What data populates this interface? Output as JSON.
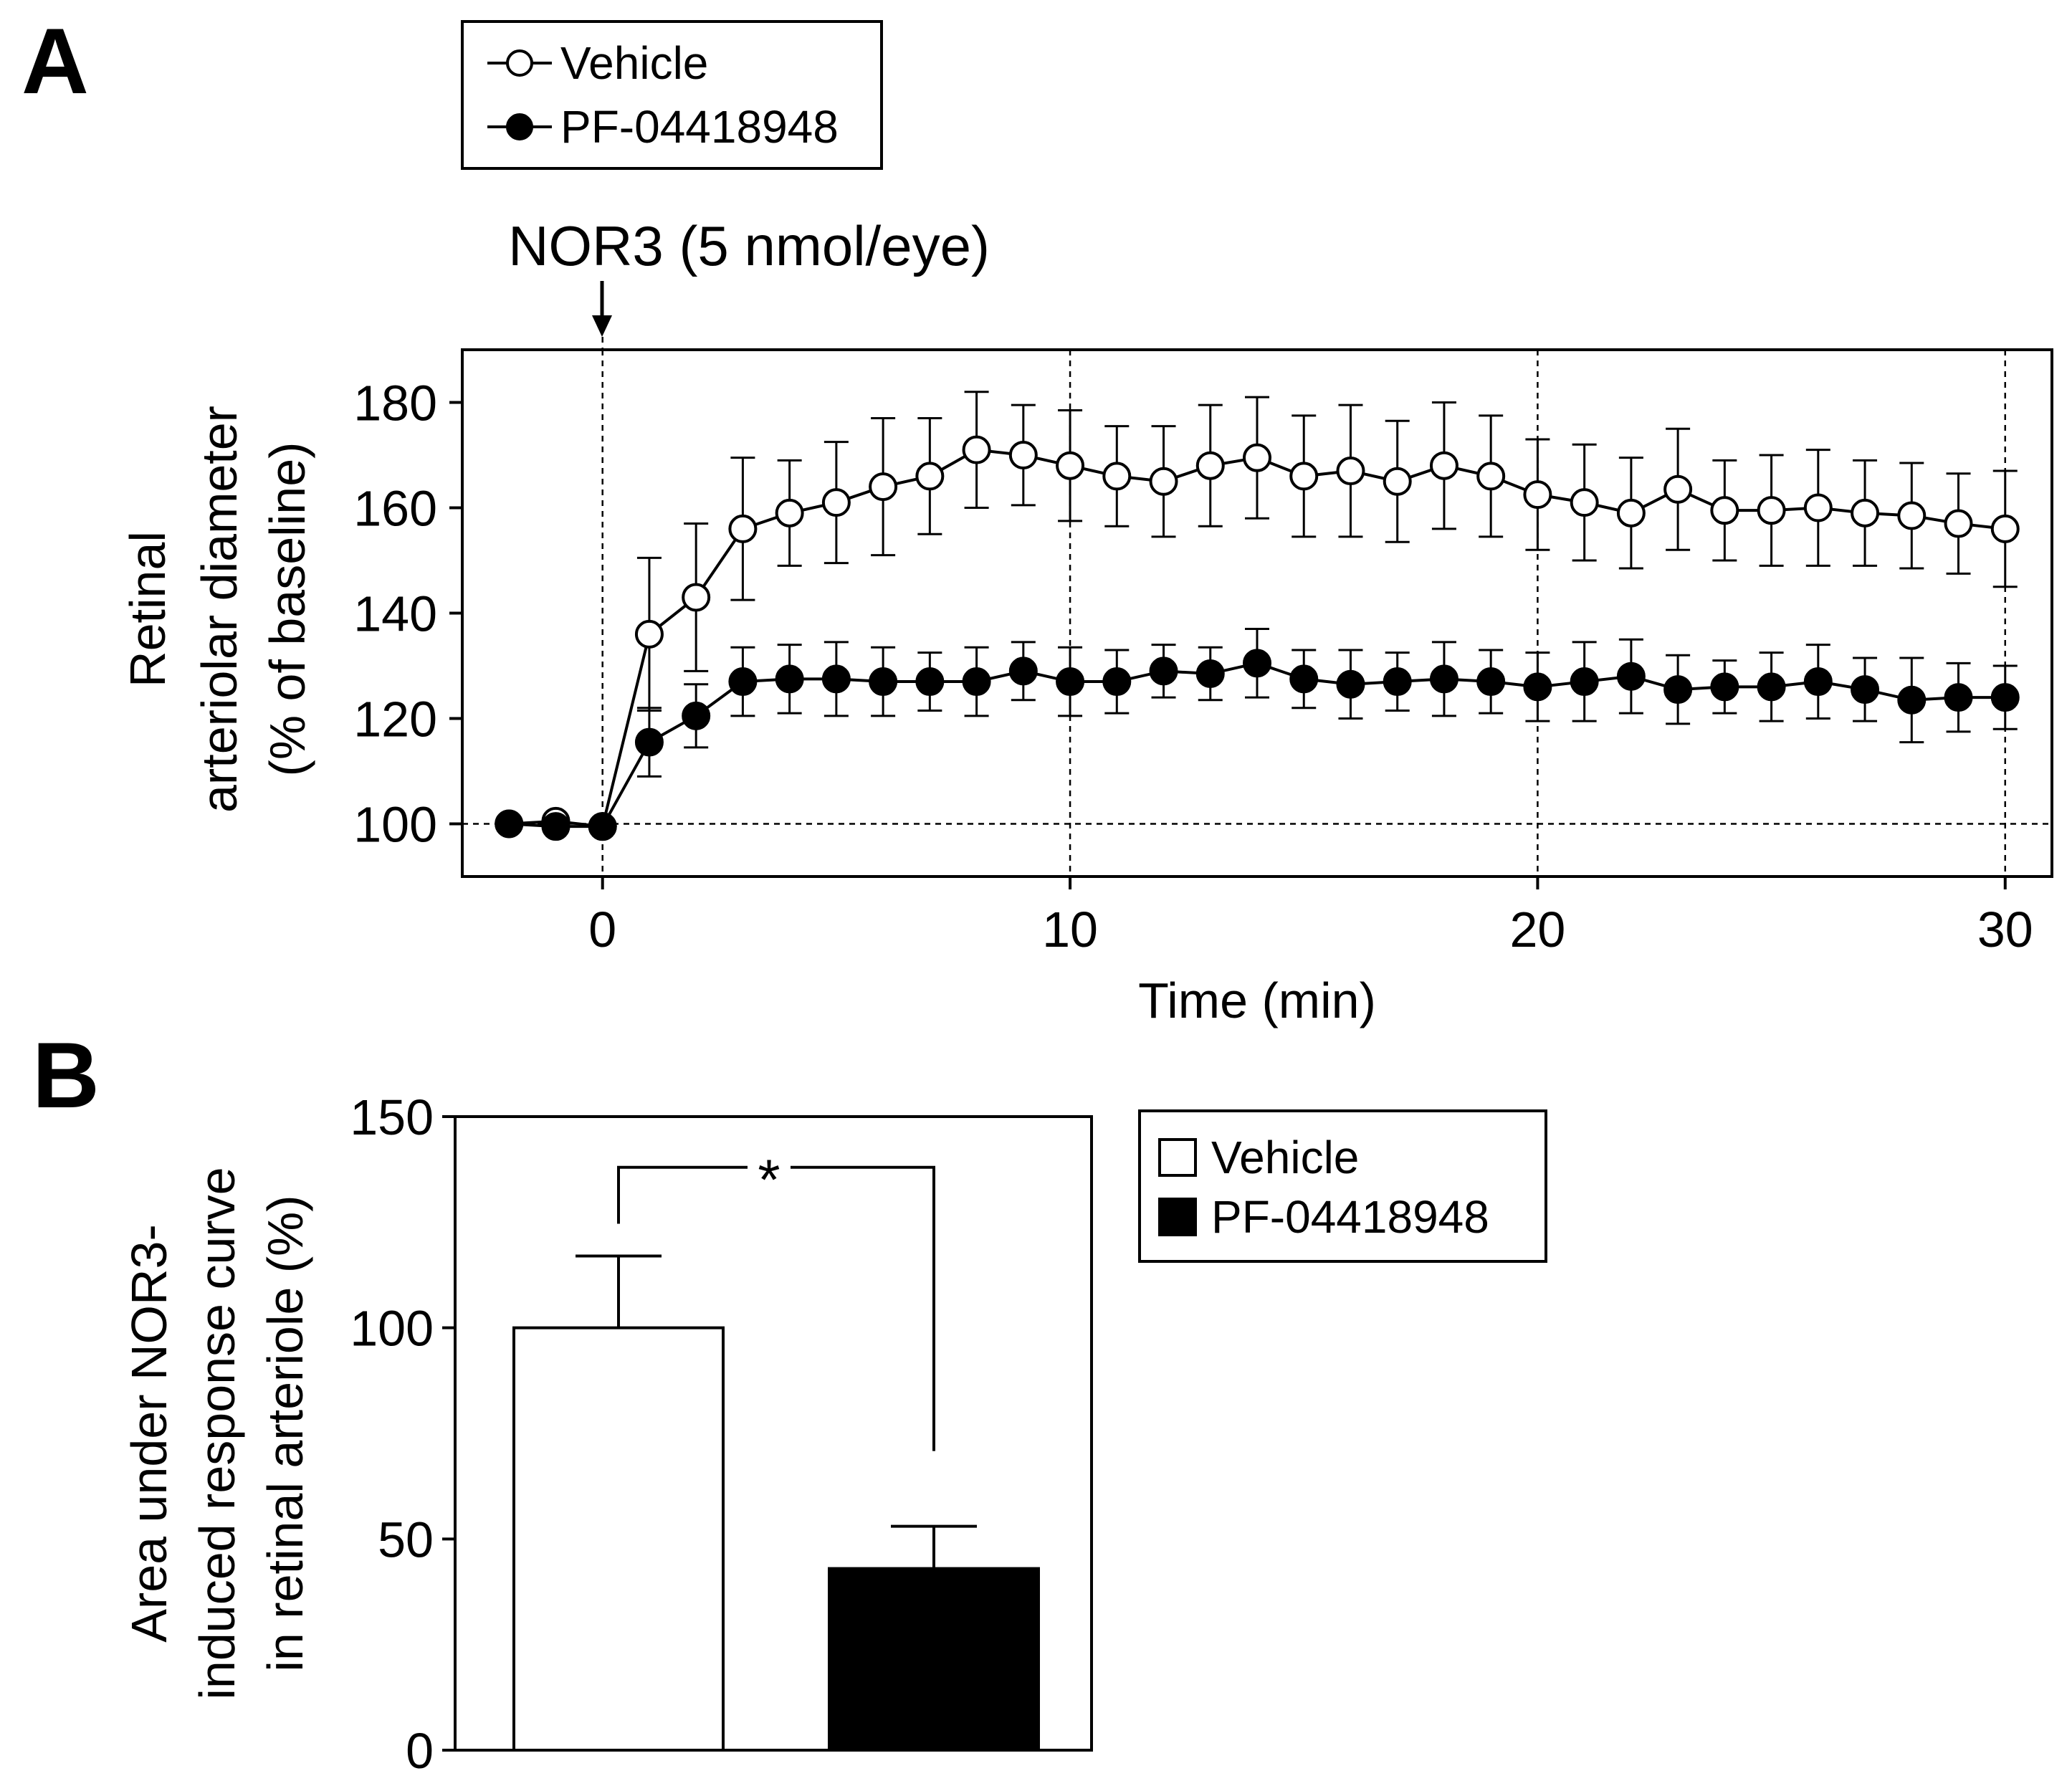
{
  "chart_data": [
    {
      "panel": "A",
      "type": "line",
      "xlabel": "Time (min)",
      "ylabel": [
        "Retinal",
        "arteriolar diameter",
        "(% of baseline)"
      ],
      "xlim": [
        -3,
        31
      ],
      "ylim": [
        90,
        190
      ],
      "xticks": [
        0,
        10,
        20,
        30
      ],
      "yticks": [
        100,
        120,
        140,
        160,
        180
      ],
      "vgrid": [
        0,
        10,
        20,
        30
      ],
      "hgrid": [
        100
      ],
      "annotation": {
        "text": "NOR3 (5 nmol/eye)",
        "x": 0
      },
      "legend": {
        "position": "top-left",
        "entries": [
          "Vehicle",
          "PF-04418948"
        ]
      },
      "series": [
        {
          "name": "Vehicle",
          "marker": "open-circle",
          "x": [
            -2,
            -1,
            0,
            1,
            2,
            3,
            4,
            5,
            6,
            7,
            8,
            9,
            10,
            11,
            12,
            13,
            14,
            15,
            16,
            17,
            18,
            19,
            20,
            21,
            22,
            23,
            24,
            25,
            26,
            27,
            28,
            29,
            30
          ],
          "y": [
            100,
            100.5,
            99.5,
            136,
            143,
            156,
            159,
            161,
            164,
            166,
            171,
            170,
            168,
            166,
            165,
            168,
            169.5,
            166,
            167,
            165,
            168,
            166,
            162.5,
            161,
            159,
            163.5,
            159.5,
            159.5,
            160,
            159,
            158.5,
            157,
            156
          ],
          "err": [
            0,
            0,
            0,
            14.5,
            14,
            13.5,
            10,
            11.5,
            13,
            11,
            11,
            9.5,
            10.5,
            9.5,
            10.5,
            11.5,
            11.5,
            11.5,
            12.5,
            11.5,
            12,
            11.5,
            10.5,
            11,
            10.5,
            11.5,
            9.5,
            10.5,
            11,
            10,
            10,
            9.5,
            11
          ]
        },
        {
          "name": "PF-04418948",
          "marker": "filled-circle",
          "x": [
            -2,
            -1,
            0,
            1,
            2,
            3,
            4,
            5,
            6,
            7,
            8,
            9,
            10,
            11,
            12,
            13,
            14,
            15,
            16,
            17,
            18,
            19,
            20,
            21,
            22,
            23,
            24,
            25,
            26,
            27,
            28,
            29,
            30
          ],
          "y": [
            100,
            99.5,
            99.5,
            115.5,
            120.5,
            127,
            127.5,
            127.5,
            127,
            127,
            127,
            129,
            127,
            127,
            129,
            128.5,
            130.5,
            127.5,
            126.5,
            127,
            127.5,
            127,
            126,
            127,
            128,
            125.5,
            126,
            126,
            127,
            125.5,
            123.5,
            124,
            124
          ],
          "err": [
            0,
            0,
            0,
            6.5,
            6,
            6.5,
            6.5,
            7,
            6.5,
            5.5,
            6.5,
            5.5,
            6.5,
            6,
            5,
            5,
            6.5,
            5.5,
            6.5,
            5.5,
            7,
            6,
            6.5,
            7.5,
            7,
            6.5,
            5,
            6.5,
            7,
            6,
            8,
            6.5,
            6
          ]
        }
      ]
    },
    {
      "panel": "B",
      "type": "bar",
      "categories": [
        "Vehicle",
        "PF-04418948"
      ],
      "values": [
        100,
        43
      ],
      "errors": [
        17,
        10
      ],
      "ylabel": [
        "Area under NOR3-",
        "induced response curve",
        "in retinal arteriole (%)"
      ],
      "ylim": [
        0,
        150
      ],
      "yticks": [
        0,
        50,
        100,
        150
      ],
      "significance": "*",
      "legend": {
        "position": "right",
        "entries": [
          "Vehicle",
          "PF-04418948"
        ]
      }
    }
  ],
  "colors": {
    "vehicle": "#ffffff",
    "treatment": "#000000",
    "axis": "#000000"
  }
}
